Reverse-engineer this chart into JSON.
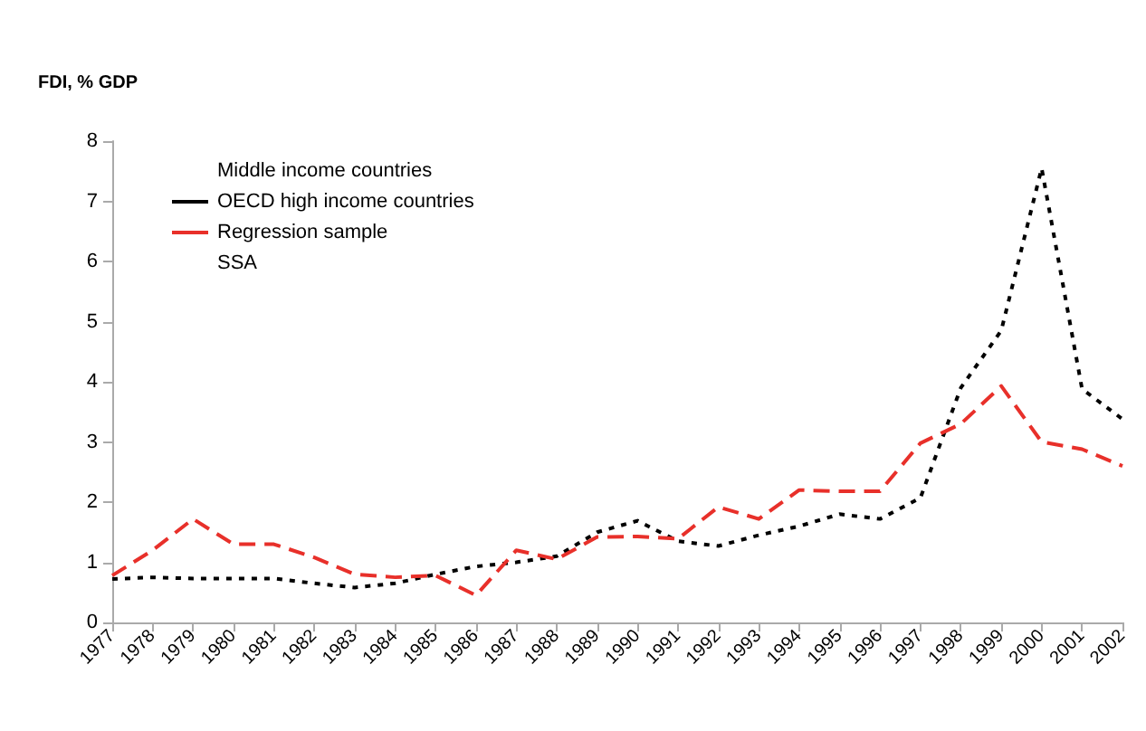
{
  "chart_data": {
    "type": "line",
    "ylabel": "FDI, % GDP",
    "categories": [
      "1977",
      "1978",
      "1979",
      "1980",
      "1981",
      "1982",
      "1983",
      "1984",
      "1985",
      "1986",
      "1987",
      "1988",
      "1989",
      "1990",
      "1991",
      "1992",
      "1993",
      "1994",
      "1995",
      "1996",
      "1997",
      "1998",
      "1999",
      "2000",
      "2001",
      "2002"
    ],
    "series": [
      {
        "name": "Middle income countries",
        "values": [
          null,
          null,
          null,
          null,
          null,
          null,
          null,
          null,
          null,
          null,
          null,
          null,
          null,
          null,
          null,
          null,
          null,
          null,
          null,
          null,
          null,
          null,
          null,
          null,
          null,
          null
        ]
      },
      {
        "name": "OECD high income countries",
        "color": "#000000",
        "line_style": "dotted",
        "values": [
          0.72,
          0.75,
          0.73,
          0.73,
          0.73,
          0.65,
          0.58,
          0.65,
          0.8,
          0.93,
          1.0,
          1.1,
          1.5,
          1.69,
          1.35,
          1.27,
          1.45,
          1.6,
          1.8,
          1.72,
          2.07,
          3.9,
          4.85,
          7.55,
          3.88,
          3.38
        ]
      },
      {
        "name": "Regression sample",
        "color": "#e8302a",
        "line_style": "dashed",
        "values": [
          0.78,
          1.2,
          1.72,
          1.3,
          1.3,
          1.08,
          0.8,
          0.75,
          0.78,
          0.45,
          1.2,
          1.05,
          1.42,
          1.43,
          1.39,
          1.92,
          1.72,
          2.2,
          2.18,
          2.18,
          2.98,
          3.3,
          3.93,
          3.0,
          2.88,
          2.6
        ]
      },
      {
        "name": "SSA",
        "values": [
          null,
          null,
          null,
          null,
          null,
          null,
          null,
          null,
          null,
          null,
          null,
          null,
          null,
          null,
          null,
          null,
          null,
          null,
          null,
          null,
          null,
          null,
          null,
          null,
          null,
          null
        ]
      }
    ],
    "ylim": [
      0,
      8
    ],
    "yticks": [
      0,
      1,
      2,
      3,
      4,
      5,
      6,
      7,
      8
    ],
    "grid": false,
    "legend": "top left",
    "marker": "none"
  }
}
